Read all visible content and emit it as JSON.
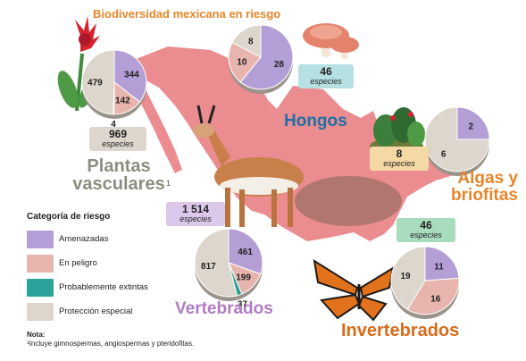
{
  "title": "Biodiversidad mexicana en riesgo",
  "colors": {
    "amenazadas": "#b49ed6",
    "en_peligro": "#e7b5ad",
    "probablemente_extintas": "#2aa39b",
    "proteccion_especial": "#dcd6cc",
    "map": "#e8787d",
    "title": "#e8852a",
    "plantas": "#8a8f80",
    "hongos": "#1c6fa7",
    "algas": "#e8852a",
    "vertebrados": "#b07bc4",
    "invertebrados": "#d86b1a"
  },
  "legend": {
    "title": "Categoría de riesgo",
    "items": [
      {
        "label": "Amenazadas",
        "color": "#b49ed6"
      },
      {
        "label": "En peligro",
        "color": "#e7b5ad"
      },
      {
        "label": "Probablemente extintas",
        "color": "#2aa39b"
      },
      {
        "label": "Protección especial",
        "color": "#dcd6cc"
      }
    ]
  },
  "note": {
    "label": "Nota:",
    "footnote": "¹Incluye gimnospermas, angiospermas y pteridofitas."
  },
  "illustrations": [
    "flor-roja-icon",
    "hongos-icon",
    "planta-verde-icon",
    "berrendo-icon",
    "mariposa-monarca-icon"
  ],
  "chart_data": [
    {
      "type": "pie",
      "group": "Plantas vasculares",
      "title_lines": [
        "Plantas",
        "vasculares"
      ],
      "footnote_mark": "1",
      "total": "969",
      "total_label": "especies",
      "total_badge_color": "#dcd6cc",
      "slices": [
        {
          "category": "Amenazadas",
          "value": 344
        },
        {
          "category": "En peligro",
          "value": 142
        },
        {
          "category": "Probablemente extintas",
          "value": 4
        },
        {
          "category": "Protección especial",
          "value": 479
        }
      ]
    },
    {
      "type": "pie",
      "group": "Hongos",
      "title_lines": [
        "Hongos"
      ],
      "total": "46",
      "total_label": "especies",
      "total_badge_color": "#b6e0e2",
      "slices": [
        {
          "category": "Amenazadas",
          "value": 28
        },
        {
          "category": "En peligro",
          "value": 10
        },
        {
          "category": "Probablemente extintas",
          "value": 0
        },
        {
          "category": "Protección especial",
          "value": 8
        }
      ]
    },
    {
      "type": "pie",
      "group": "Algas y briofitas",
      "title_lines": [
        "Algas y",
        "briofitas"
      ],
      "total": "8",
      "total_label": "especies",
      "total_badge_color": "#f5d9a5",
      "slices": [
        {
          "category": "Amenazadas",
          "value": 2
        },
        {
          "category": "En peligro",
          "value": 0
        },
        {
          "category": "Probablemente extintas",
          "value": 0
        },
        {
          "category": "Protección especial",
          "value": 6
        }
      ]
    },
    {
      "type": "pie",
      "group": "Vertebrados",
      "title_lines": [
        "Vertebrados"
      ],
      "total": "1 514",
      "total_label": "especies",
      "total_badge_color": "#dcc8ea",
      "slices": [
        {
          "category": "Amenazadas",
          "value": 461
        },
        {
          "category": "En peligro",
          "value": 199
        },
        {
          "category": "Probablemente extintas",
          "value": 37
        },
        {
          "category": "Protección especial",
          "value": 817
        }
      ]
    },
    {
      "type": "pie",
      "group": "Invertebrados",
      "title_lines": [
        "Invertebrados"
      ],
      "total": "46",
      "total_label": "especies",
      "total_badge_color": "#a9dcbc",
      "slices": [
        {
          "category": "Amenazadas",
          "value": 11
        },
        {
          "category": "En peligro",
          "value": 16
        },
        {
          "category": "Probablemente extintas",
          "value": 0
        },
        {
          "category": "Protección especial",
          "value": 19
        }
      ]
    }
  ]
}
